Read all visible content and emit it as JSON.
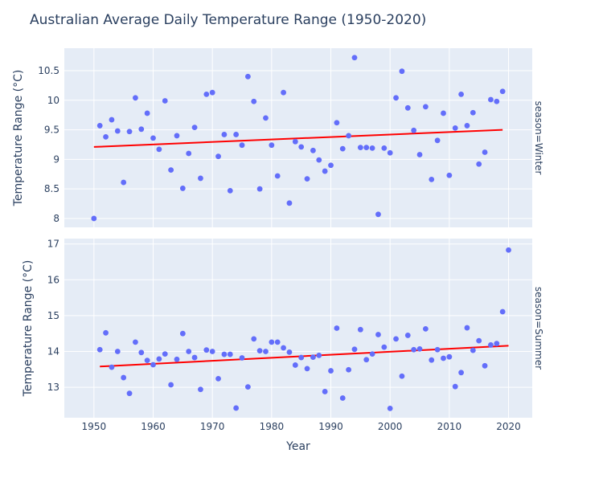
{
  "chart_data": {
    "type": "scatter",
    "title": "Australian Average Daily Temperature Range (1950-2020)",
    "xlabel": "Year",
    "ylabel": "Temperature Range (°C)",
    "xlim": [
      1945,
      2024
    ],
    "x_ticks": [
      1950,
      1960,
      1970,
      1980,
      1990,
      2000,
      2010,
      2020
    ],
    "grid": true,
    "colors": {
      "points": "#636efa",
      "trend": "#ff0000",
      "plot_bg": "#e5ecf6",
      "grid": "#ffffff"
    },
    "panels": [
      {
        "label": "season=Winter",
        "ylim": [
          7.85,
          10.88
        ],
        "y_ticks": [
          8,
          8.5,
          9,
          9.5,
          10,
          10.5
        ],
        "y_tick_labels": [
          "8",
          "8.5",
          "9",
          "9.5",
          "10",
          "10.5"
        ],
        "x": [
          1950,
          1951,
          1952,
          1953,
          1954,
          1955,
          1956,
          1957,
          1958,
          1959,
          1960,
          1961,
          1962,
          1963,
          1964,
          1965,
          1966,
          1967,
          1968,
          1969,
          1970,
          1971,
          1972,
          1973,
          1974,
          1975,
          1976,
          1977,
          1978,
          1979,
          1980,
          1981,
          1982,
          1983,
          1984,
          1985,
          1986,
          1987,
          1988,
          1989,
          1990,
          1991,
          1992,
          1993,
          1994,
          1995,
          1996,
          1997,
          1998,
          1999,
          2000,
          2001,
          2002,
          2003,
          2004,
          2005,
          2006,
          2007,
          2008,
          2009,
          2010,
          2011,
          2012,
          2013,
          2014,
          2015,
          2016,
          2017,
          2018,
          2019
        ],
        "y": [
          8.0,
          9.57,
          9.38,
          9.67,
          9.48,
          8.61,
          9.47,
          10.04,
          9.51,
          9.78,
          9.36,
          9.17,
          9.99,
          8.82,
          9.4,
          8.51,
          9.1,
          9.54,
          8.68,
          10.1,
          10.13,
          9.05,
          9.42,
          8.47,
          9.42,
          9.24,
          10.4,
          9.98,
          8.5,
          9.7,
          9.24,
          8.72,
          10.13,
          8.26,
          9.3,
          9.21,
          8.67,
          9.15,
          8.99,
          8.8,
          8.9,
          9.62,
          9.18,
          9.4,
          10.72,
          9.2,
          9.2,
          9.19,
          8.07,
          9.19,
          9.11,
          10.04,
          10.49,
          9.87,
          9.49,
          9.08,
          9.89,
          8.66,
          9.32,
          9.78,
          8.73,
          9.53,
          10.1,
          9.57,
          9.79,
          8.92,
          9.12,
          10.01,
          9.98,
          10.15
        ],
        "trend": {
          "x": [
            1950,
            2019
          ],
          "y": [
            9.21,
            9.5
          ]
        }
      },
      {
        "label": "season=Summer",
        "ylim": [
          12.15,
          17.15
        ],
        "y_ticks": [
          13,
          14,
          15,
          16,
          17
        ],
        "y_tick_labels": [
          "13",
          "14",
          "15",
          "16",
          "17"
        ],
        "x": [
          1951,
          1952,
          1953,
          1954,
          1955,
          1956,
          1957,
          1958,
          1959,
          1960,
          1961,
          1962,
          1963,
          1964,
          1965,
          1966,
          1967,
          1968,
          1969,
          1970,
          1971,
          1972,
          1973,
          1974,
          1975,
          1976,
          1977,
          1978,
          1979,
          1980,
          1981,
          1982,
          1983,
          1984,
          1985,
          1986,
          1987,
          1988,
          1989,
          1990,
          1991,
          1992,
          1993,
          1994,
          1995,
          1996,
          1997,
          1998,
          1999,
          2000,
          2001,
          2002,
          2003,
          2004,
          2005,
          2006,
          2007,
          2008,
          2009,
          2010,
          2011,
          2012,
          2013,
          2014,
          2015,
          2016,
          2017,
          2018,
          2019,
          2020
        ],
        "y": [
          14.05,
          14.52,
          13.56,
          14.0,
          13.27,
          12.83,
          14.26,
          13.97,
          13.75,
          13.63,
          13.79,
          13.93,
          13.07,
          13.78,
          14.5,
          14.0,
          13.83,
          12.94,
          14.04,
          14.0,
          13.24,
          13.92,
          13.92,
          12.42,
          13.82,
          13.01,
          14.35,
          14.02,
          14.0,
          14.26,
          14.26,
          14.1,
          13.98,
          13.62,
          13.83,
          13.52,
          13.84,
          13.89,
          12.88,
          13.46,
          14.65,
          12.7,
          13.49,
          14.06,
          14.61,
          13.77,
          13.93,
          14.47,
          14.12,
          12.41,
          14.35,
          13.31,
          14.45,
          14.05,
          14.07,
          14.63,
          13.76,
          14.05,
          13.81,
          13.85,
          13.02,
          13.41,
          14.66,
          14.03,
          14.3,
          13.6,
          14.18,
          14.22,
          15.11,
          16.83
        ],
        "trend": {
          "x": [
            1951,
            2020
          ],
          "y": [
            13.58,
            14.16
          ]
        }
      }
    ]
  }
}
